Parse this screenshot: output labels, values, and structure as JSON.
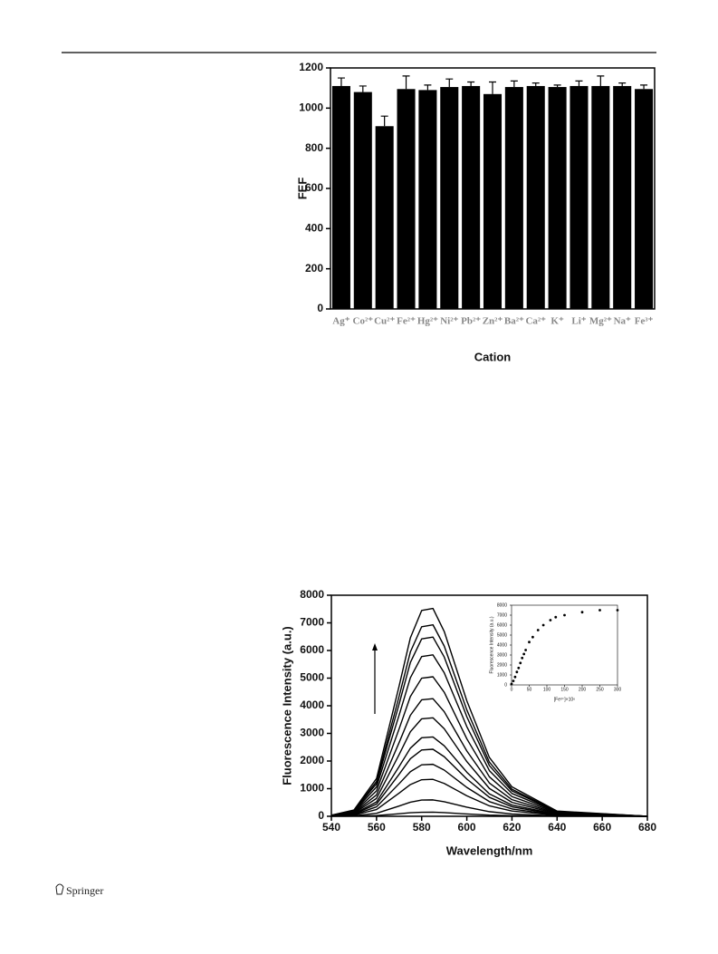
{
  "footer": {
    "publisher": "Springer"
  },
  "chart_data": [
    {
      "type": "bar",
      "xlabel": "Cation",
      "ylabel": "FEF",
      "color": "#000000",
      "categories": [
        "Ag⁺",
        "Co²⁺",
        "Cu²⁺",
        "Fe²⁺",
        "Hg²⁺",
        "Ni²⁺",
        "Pb²⁺",
        "Zn²⁺",
        "Ba²⁺",
        "Ca²⁺",
        "K⁺",
        "Li⁺",
        "Mg²⁺",
        "Na⁺",
        "Fe³⁺"
      ],
      "values": [
        1110,
        1080,
        910,
        1095,
        1090,
        1105,
        1110,
        1070,
        1105,
        1110,
        1105,
        1110,
        1110,
        1110,
        1095
      ],
      "errors": [
        40,
        30,
        50,
        65,
        25,
        40,
        20,
        60,
        30,
        15,
        10,
        25,
        50,
        15,
        20
      ],
      "ylim": [
        0,
        1200
      ],
      "yticks": [
        0,
        200,
        400,
        600,
        800,
        1000,
        1200
      ]
    },
    {
      "type": "line",
      "xlabel": "Wavelength/nm",
      "ylabel": "Fluorescence Intensity (a.u.)",
      "color": "#000000",
      "x": [
        540,
        550,
        560,
        570,
        575,
        580,
        585,
        590,
        600,
        610,
        620,
        640,
        680
      ],
      "series": [
        {
          "values": [
            1,
            5,
            27,
            93,
            128,
            147,
            149,
            132,
            83,
            42,
            21,
            4,
            0
          ]
        },
        {
          "values": [
            3,
            18,
            108,
            372,
            510,
            588,
            594,
            528,
            330,
            168,
            84,
            15,
            0
          ]
        },
        {
          "values": [
            7,
            41,
            243,
            837,
            1148,
            1323,
            1337,
            1188,
            743,
            378,
            189,
            34,
            0
          ]
        },
        {
          "values": [
            10,
            57,
            342,
            1178,
            1615,
            1862,
            1881,
            1672,
            1045,
            532,
            266,
            48,
            0
          ]
        },
        {
          "values": [
            12,
            74,
            441,
            1519,
            2083,
            2401,
            2426,
            2156,
            1348,
            686,
            343,
            61,
            0
          ]
        },
        {
          "values": [
            15,
            87,
            522,
            1798,
            2465,
            2842,
            2871,
            2552,
            1595,
            812,
            406,
            73,
            0
          ]
        },
        {
          "values": [
            18,
            108,
            648,
            2232,
            3060,
            3528,
            3564,
            3168,
            1980,
            1008,
            504,
            90,
            0
          ]
        },
        {
          "values": [
            22,
            129,
            774,
            2666,
            3655,
            4214,
            4257,
            3784,
            2365,
            1204,
            602,
            108,
            0
          ]
        },
        {
          "values": [
            26,
            153,
            918,
            3162,
            4335,
            4998,
            5049,
            4488,
            2805,
            1428,
            714,
            128,
            0
          ]
        },
        {
          "values": [
            30,
            177,
            1062,
            3658,
            5015,
            5782,
            5841,
            5192,
            3245,
            1652,
            826,
            148,
            0
          ]
        },
        {
          "values": [
            33,
            197,
            1179,
            4061,
            5568,
            6419,
            6485,
            5764,
            3603,
            1834,
            917,
            164,
            0
          ]
        },
        {
          "values": [
            35,
            210,
            1260,
            4340,
            5950,
            6860,
            6930,
            6160,
            3850,
            1960,
            980,
            175,
            0
          ]
        },
        {
          "values": [
            38,
            228,
            1368,
            4712,
            6460,
            7448,
            7524,
            6688,
            4180,
            2128,
            1064,
            190,
            0
          ]
        }
      ],
      "xlim": [
        540,
        680
      ],
      "xticks": [
        540,
        560,
        580,
        600,
        620,
        640,
        660,
        680
      ],
      "ylim": [
        0,
        8000
      ],
      "yticks": [
        0,
        1000,
        2000,
        3000,
        4000,
        5000,
        6000,
        7000,
        8000
      ]
    },
    {
      "type": "scatter",
      "xlabel": "[Fe³⁺]×10⁶",
      "ylabel": "Fluorescence Intensity (a.u.)",
      "color": "#000000",
      "x": [
        0,
        5,
        10,
        15,
        20,
        25,
        30,
        35,
        40,
        50,
        60,
        75,
        90,
        110,
        125,
        150,
        200,
        250,
        300
      ],
      "values": [
        100,
        400,
        800,
        1300,
        1700,
        2200,
        2700,
        3100,
        3500,
        4300,
        4800,
        5500,
        6000,
        6500,
        6800,
        7000,
        7300,
        7500,
        7500
      ],
      "xlim": [
        0,
        300
      ],
      "xticks": [
        0,
        50,
        100,
        150,
        200,
        250,
        300
      ],
      "ylim": [
        0,
        8000
      ],
      "yticks": [
        0,
        1000,
        2000,
        3000,
        4000,
        5000,
        6000,
        7000,
        8000
      ]
    }
  ]
}
